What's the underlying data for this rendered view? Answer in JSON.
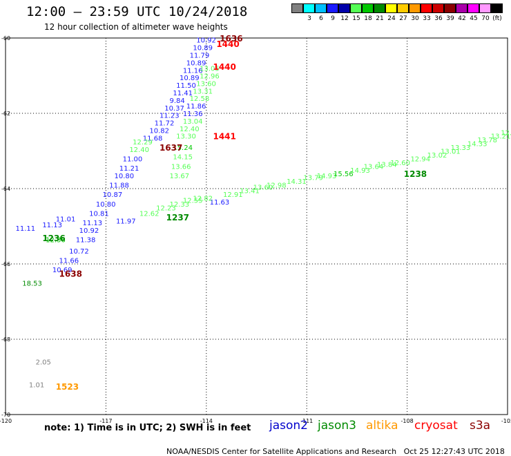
{
  "header": {
    "title": "12:00 — 23:59 UTC 10/24/2018",
    "subtitle": "12 hour collection of altimeter wave heights"
  },
  "colorbar": {
    "unit_label": "(ft)",
    "bins": [
      {
        "color": "#808080",
        "label": ""
      },
      {
        "color": "#00ffff",
        "label": "3"
      },
      {
        "color": "#00bfff",
        "label": "6"
      },
      {
        "color": "#1a1aff",
        "label": "9"
      },
      {
        "color": "#0000aa",
        "label": "12"
      },
      {
        "color": "#55ff55",
        "label": "15"
      },
      {
        "color": "#00c800",
        "label": "18"
      },
      {
        "color": "#008a00",
        "label": "21"
      },
      {
        "color": "#ffff00",
        "label": "24"
      },
      {
        "color": "#ffcc00",
        "label": "27"
      },
      {
        "color": "#ff9900",
        "label": "30"
      },
      {
        "color": "#ff0000",
        "label": "33"
      },
      {
        "color": "#cc0000",
        "label": "36"
      },
      {
        "color": "#8b0000",
        "label": "39"
      },
      {
        "color": "#aa00aa",
        "label": "42"
      },
      {
        "color": "#ff00ff",
        "label": "45"
      },
      {
        "color": "#ff99ff",
        "label": "70"
      },
      {
        "color": "#000000",
        "label": "(ft)"
      }
    ]
  },
  "map": {
    "lon_range": [
      -120,
      -105
    ],
    "lat_range": [
      -70,
      -60
    ],
    "lat_ticks": [
      {
        "value": -60,
        "label": "-60"
      },
      {
        "value": -62,
        "label": "-62"
      },
      {
        "value": -64,
        "label": "-64"
      },
      {
        "value": -66,
        "label": "-66"
      },
      {
        "value": -68,
        "label": "-68"
      },
      {
        "value": -70,
        "label": "-70"
      }
    ],
    "lon_ticks": [
      {
        "value": -120,
        "label": "-120"
      },
      {
        "value": -117,
        "label": "-117"
      },
      {
        "value": -114,
        "label": "-114"
      },
      {
        "value": -111,
        "label": "-111"
      },
      {
        "value": -108,
        "label": "-108"
      },
      {
        "value": -105,
        "label": "-105"
      }
    ],
    "labels": [
      {
        "lon": -114.3,
        "lat": -60.05,
        "text": "10.92",
        "color": "#1a1aff"
      },
      {
        "lon": -114.4,
        "lat": -60.25,
        "text": "10.89",
        "color": "#1a1aff"
      },
      {
        "lon": -114.5,
        "lat": -60.45,
        "text": "11.79",
        "color": "#1a1aff"
      },
      {
        "lon": -114.6,
        "lat": -60.65,
        "text": "10.89",
        "color": "#1a1aff"
      },
      {
        "lon": -114.7,
        "lat": -60.85,
        "text": "11.16",
        "color": "#1a1aff"
      },
      {
        "lon": -114.8,
        "lat": -61.05,
        "text": "10.89",
        "color": "#1a1aff"
      },
      {
        "lon": -114.9,
        "lat": -61.25,
        "text": "11.50",
        "color": "#1a1aff"
      },
      {
        "lon": -115.0,
        "lat": -61.45,
        "text": "11.41",
        "color": "#1a1aff"
      },
      {
        "lon": -115.1,
        "lat": -61.65,
        "text": "9.84",
        "color": "#1a1aff"
      },
      {
        "lon": -115.25,
        "lat": -61.85,
        "text": "10.37",
        "color": "#1a1aff"
      },
      {
        "lon": -115.4,
        "lat": -62.05,
        "text": "11.23",
        "color": "#1a1aff"
      },
      {
        "lon": -115.55,
        "lat": -62.25,
        "text": "11.72",
        "color": "#1a1aff"
      },
      {
        "lon": -115.7,
        "lat": -62.45,
        "text": "10.82",
        "color": "#1a1aff"
      },
      {
        "lon": -115.9,
        "lat": -62.65,
        "text": "11.68",
        "color": "#1a1aff"
      },
      {
        "lon": -116.5,
        "lat": -63.2,
        "text": "11.00",
        "color": "#1a1aff"
      },
      {
        "lon": -116.6,
        "lat": -63.45,
        "text": "11.21",
        "color": "#1a1aff"
      },
      {
        "lon": -116.75,
        "lat": -63.65,
        "text": "10.80",
        "color": "#1a1aff"
      },
      {
        "lon": -116.9,
        "lat": -63.9,
        "text": "11.88",
        "color": "#1a1aff"
      },
      {
        "lon": -117.1,
        "lat": -64.15,
        "text": "10.87",
        "color": "#1a1aff"
      },
      {
        "lon": -117.3,
        "lat": -64.4,
        "text": "10.80",
        "color": "#1a1aff"
      },
      {
        "lon": -117.5,
        "lat": -64.65,
        "text": "10.81",
        "color": "#1a1aff"
      },
      {
        "lon": -117.7,
        "lat": -64.9,
        "text": "11.13",
        "color": "#1a1aff"
      },
      {
        "lon": -118.5,
        "lat": -64.8,
        "text": "11.01",
        "color": "#1a1aff"
      },
      {
        "lon": -117.8,
        "lat": -65.1,
        "text": "10.92",
        "color": "#1a1aff"
      },
      {
        "lon": -117.9,
        "lat": -65.35,
        "text": "11.38",
        "color": "#1a1aff"
      },
      {
        "lon": -118.1,
        "lat": -65.65,
        "text": "10.72",
        "color": "#1a1aff"
      },
      {
        "lon": -118.4,
        "lat": -65.9,
        "text": "11.66",
        "color": "#1a1aff"
      },
      {
        "lon": -118.6,
        "lat": -66.15,
        "text": "10.69",
        "color": "#1a1aff"
      },
      {
        "lon": -119.7,
        "lat": -65.05,
        "text": "11.11",
        "color": "#1a1aff"
      },
      {
        "lon": -118.9,
        "lat": -64.95,
        "text": "11.13",
        "color": "#1a1aff"
      },
      {
        "lon": -116.7,
        "lat": -64.85,
        "text": "11.97",
        "color": "#1a1aff"
      },
      {
        "lon": -113.9,
        "lat": -64.35,
        "text": "11.63",
        "color": "#1a1aff"
      },
      {
        "lon": -114.2,
        "lat": -60.8,
        "text": "13.05",
        "color": "#55ff55"
      },
      {
        "lon": -114.2,
        "lat": -61.0,
        "text": "12.96",
        "color": "#55ff55"
      },
      {
        "lon": -114.3,
        "lat": -61.2,
        "text": "13.60",
        "color": "#55ff55"
      },
      {
        "lon": -114.4,
        "lat": -61.4,
        "text": "13.31",
        "color": "#55ff55"
      },
      {
        "lon": -114.5,
        "lat": -61.6,
        "text": "12.58",
        "color": "#55ff55"
      },
      {
        "lon": -114.6,
        "lat": -61.8,
        "text": "11.86",
        "color": "#1a1aff"
      },
      {
        "lon": -114.7,
        "lat": -62.0,
        "text": "11.36",
        "color": "#1a1aff"
      },
      {
        "lon": -114.7,
        "lat": -62.2,
        "text": "13.04",
        "color": "#55ff55"
      },
      {
        "lon": -114.8,
        "lat": -62.4,
        "text": "12.40",
        "color": "#55ff55"
      },
      {
        "lon": -114.9,
        "lat": -62.6,
        "text": "13.30",
        "color": "#55ff55"
      },
      {
        "lon": -115.0,
        "lat": -62.9,
        "text": "15.24",
        "color": "#00c800"
      },
      {
        "lon": -115.0,
        "lat": -63.15,
        "text": "14.15",
        "color": "#55ff55"
      },
      {
        "lon": -115.05,
        "lat": -63.4,
        "text": "13.66",
        "color": "#55ff55"
      },
      {
        "lon": -115.1,
        "lat": -63.65,
        "text": "13.67",
        "color": "#55ff55"
      },
      {
        "lon": -116.2,
        "lat": -62.75,
        "text": "12.29",
        "color": "#55ff55"
      },
      {
        "lon": -116.3,
        "lat": -62.95,
        "text": "12.40",
        "color": "#55ff55"
      },
      {
        "lon": -118.8,
        "lat": -65.35,
        "text": "12.36",
        "color": "#00c800"
      },
      {
        "lon": -119.5,
        "lat": -66.5,
        "text": "18.53",
        "color": "#008a00"
      },
      {
        "lon": -116.0,
        "lat": -64.65,
        "text": "12.62",
        "color": "#55ff55"
      },
      {
        "lon": -115.5,
        "lat": -64.5,
        "text": "12.23",
        "color": "#55ff55"
      },
      {
        "lon": -115.1,
        "lat": -64.4,
        "text": "12.33",
        "color": "#55ff55"
      },
      {
        "lon": -114.7,
        "lat": -64.3,
        "text": "12.55",
        "color": "#55ff55"
      },
      {
        "lon": -114.4,
        "lat": -64.25,
        "text": "12.82",
        "color": "#55ff55"
      },
      {
        "lon": -113.5,
        "lat": -64.15,
        "text": "12.91",
        "color": "#55ff55"
      },
      {
        "lon": -113.0,
        "lat": -64.05,
        "text": "13.41",
        "color": "#55ff55"
      },
      {
        "lon": -112.6,
        "lat": -63.95,
        "text": "13.60",
        "color": "#55ff55"
      },
      {
        "lon": -112.2,
        "lat": -63.9,
        "text": "12.98",
        "color": "#55ff55"
      },
      {
        "lon": -111.6,
        "lat": -63.8,
        "text": "14.31",
        "color": "#55ff55"
      },
      {
        "lon": -111.1,
        "lat": -63.7,
        "text": "13.79",
        "color": "#55ff55"
      },
      {
        "lon": -110.7,
        "lat": -63.65,
        "text": "14.93",
        "color": "#55ff55"
      },
      {
        "lon": -110.2,
        "lat": -63.6,
        "text": "15.56",
        "color": "#00c800"
      },
      {
        "lon": -109.7,
        "lat": -63.5,
        "text": "14.93",
        "color": "#55ff55"
      },
      {
        "lon": -109.3,
        "lat": -63.4,
        "text": "13.64",
        "color": "#55ff55"
      },
      {
        "lon": -108.9,
        "lat": -63.35,
        "text": "13.84",
        "color": "#55ff55"
      },
      {
        "lon": -108.5,
        "lat": -63.3,
        "text": "12.60",
        "color": "#55ff55"
      },
      {
        "lon": -107.9,
        "lat": -63.2,
        "text": "12.94",
        "color": "#55ff55"
      },
      {
        "lon": -107.4,
        "lat": -63.1,
        "text": "13.02",
        "color": "#55ff55"
      },
      {
        "lon": -107.0,
        "lat": -63.0,
        "text": "13.01",
        "color": "#55ff55"
      },
      {
        "lon": -106.7,
        "lat": -62.9,
        "text": "13.33",
        "color": "#55ff55"
      },
      {
        "lon": -106.2,
        "lat": -62.8,
        "text": "14.33",
        "color": "#55ff55"
      },
      {
        "lon": -105.9,
        "lat": -62.7,
        "text": "13.78",
        "color": "#55ff55"
      },
      {
        "lon": -105.5,
        "lat": -62.6,
        "text": "13.21",
        "color": "#55ff55"
      },
      {
        "lon": -105.2,
        "lat": -62.5,
        "text": "12.87",
        "color": "#55ff55"
      },
      {
        "lon": -104.8,
        "lat": -62.4,
        "text": "12.78",
        "color": "#55ff55"
      },
      {
        "lon": -119.1,
        "lat": -68.6,
        "text": "2.05",
        "color": "#808080"
      },
      {
        "lon": -119.3,
        "lat": -69.2,
        "text": "1.01",
        "color": "#808080"
      }
    ],
    "time_labels": [
      {
        "lon": -113.6,
        "lat": -60.0,
        "text": "1636",
        "color": "#8b0000"
      },
      {
        "lon": -113.7,
        "lat": -60.15,
        "text": "1440",
        "color": "#ff0000"
      },
      {
        "lon": -113.8,
        "lat": -60.75,
        "text": "1440",
        "color": "#ff0000"
      },
      {
        "lon": -113.8,
        "lat": -62.6,
        "text": "1441",
        "color": "#ff0000"
      },
      {
        "lon": -115.4,
        "lat": -62.9,
        "text": "1637",
        "color": "#8b0000"
      },
      {
        "lon": -115.2,
        "lat": -64.75,
        "text": "1237",
        "color": "#008a00"
      },
      {
        "lon": -108.1,
        "lat": -63.6,
        "text": "1238",
        "color": "#008a00"
      },
      {
        "lon": -118.4,
        "lat": -66.25,
        "text": "1638",
        "color": "#8b0000"
      },
      {
        "lon": -118.5,
        "lat": -69.25,
        "text": "1523",
        "color": "#ff9900"
      },
      {
        "lon": -118.9,
        "lat": -65.3,
        "text": "1236",
        "color": "#008a00"
      }
    ]
  },
  "footer": {
    "note": "note: 1) Time is in UTC; 2) SWH is in feet",
    "satellites": [
      {
        "name": "jason2",
        "color": "#0000cc"
      },
      {
        "name": "jason3",
        "color": "#008a00"
      },
      {
        "name": "altika",
        "color": "#ff9900"
      },
      {
        "name": "cryosat",
        "color": "#ff0000"
      },
      {
        "name": "s3a",
        "color": "#8b0000"
      }
    ],
    "credit": "NOAA/NESDIS Center for Satellite Applications and Research",
    "timestamp": "Oct 25 12:27:43 UTC 2018"
  }
}
